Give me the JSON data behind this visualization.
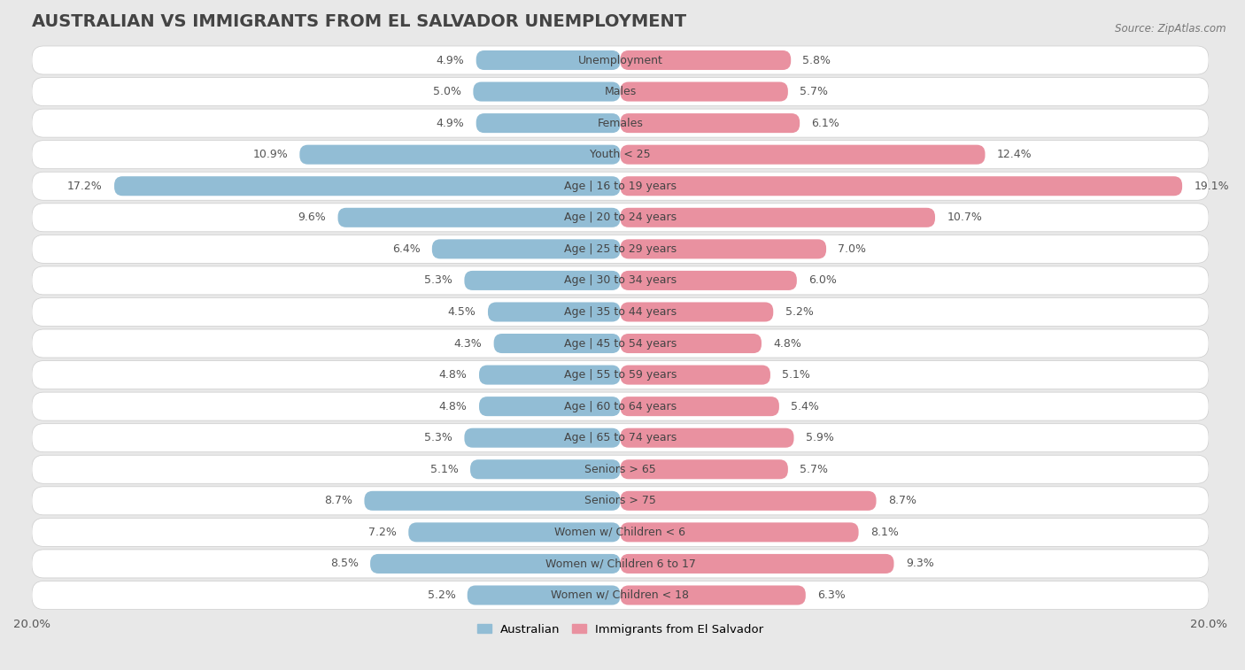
{
  "title": "AUSTRALIAN VS IMMIGRANTS FROM EL SALVADOR UNEMPLOYMENT",
  "source": "Source: ZipAtlas.com",
  "categories": [
    "Unemployment",
    "Males",
    "Females",
    "Youth < 25",
    "Age | 16 to 19 years",
    "Age | 20 to 24 years",
    "Age | 25 to 29 years",
    "Age | 30 to 34 years",
    "Age | 35 to 44 years",
    "Age | 45 to 54 years",
    "Age | 55 to 59 years",
    "Age | 60 to 64 years",
    "Age | 65 to 74 years",
    "Seniors > 65",
    "Seniors > 75",
    "Women w/ Children < 6",
    "Women w/ Children 6 to 17",
    "Women w/ Children < 18"
  ],
  "australian": [
    4.9,
    5.0,
    4.9,
    10.9,
    17.2,
    9.6,
    6.4,
    5.3,
    4.5,
    4.3,
    4.8,
    4.8,
    5.3,
    5.1,
    8.7,
    7.2,
    8.5,
    5.2
  ],
  "immigrants": [
    5.8,
    5.7,
    6.1,
    12.4,
    19.1,
    10.7,
    7.0,
    6.0,
    5.2,
    4.8,
    5.1,
    5.4,
    5.9,
    5.7,
    8.7,
    8.1,
    9.3,
    6.3
  ],
  "australian_color": "#92bdd5",
  "immigrants_color": "#e991a0",
  "axis_max": 20.0,
  "background_color": "#e8e8e8",
  "row_bg_color": "#ffffff",
  "title_fontsize": 14,
  "label_fontsize": 9,
  "value_fontsize": 9,
  "legend_label_australian": "Australian",
  "legend_label_immigrants": "Immigrants from El Salvador"
}
